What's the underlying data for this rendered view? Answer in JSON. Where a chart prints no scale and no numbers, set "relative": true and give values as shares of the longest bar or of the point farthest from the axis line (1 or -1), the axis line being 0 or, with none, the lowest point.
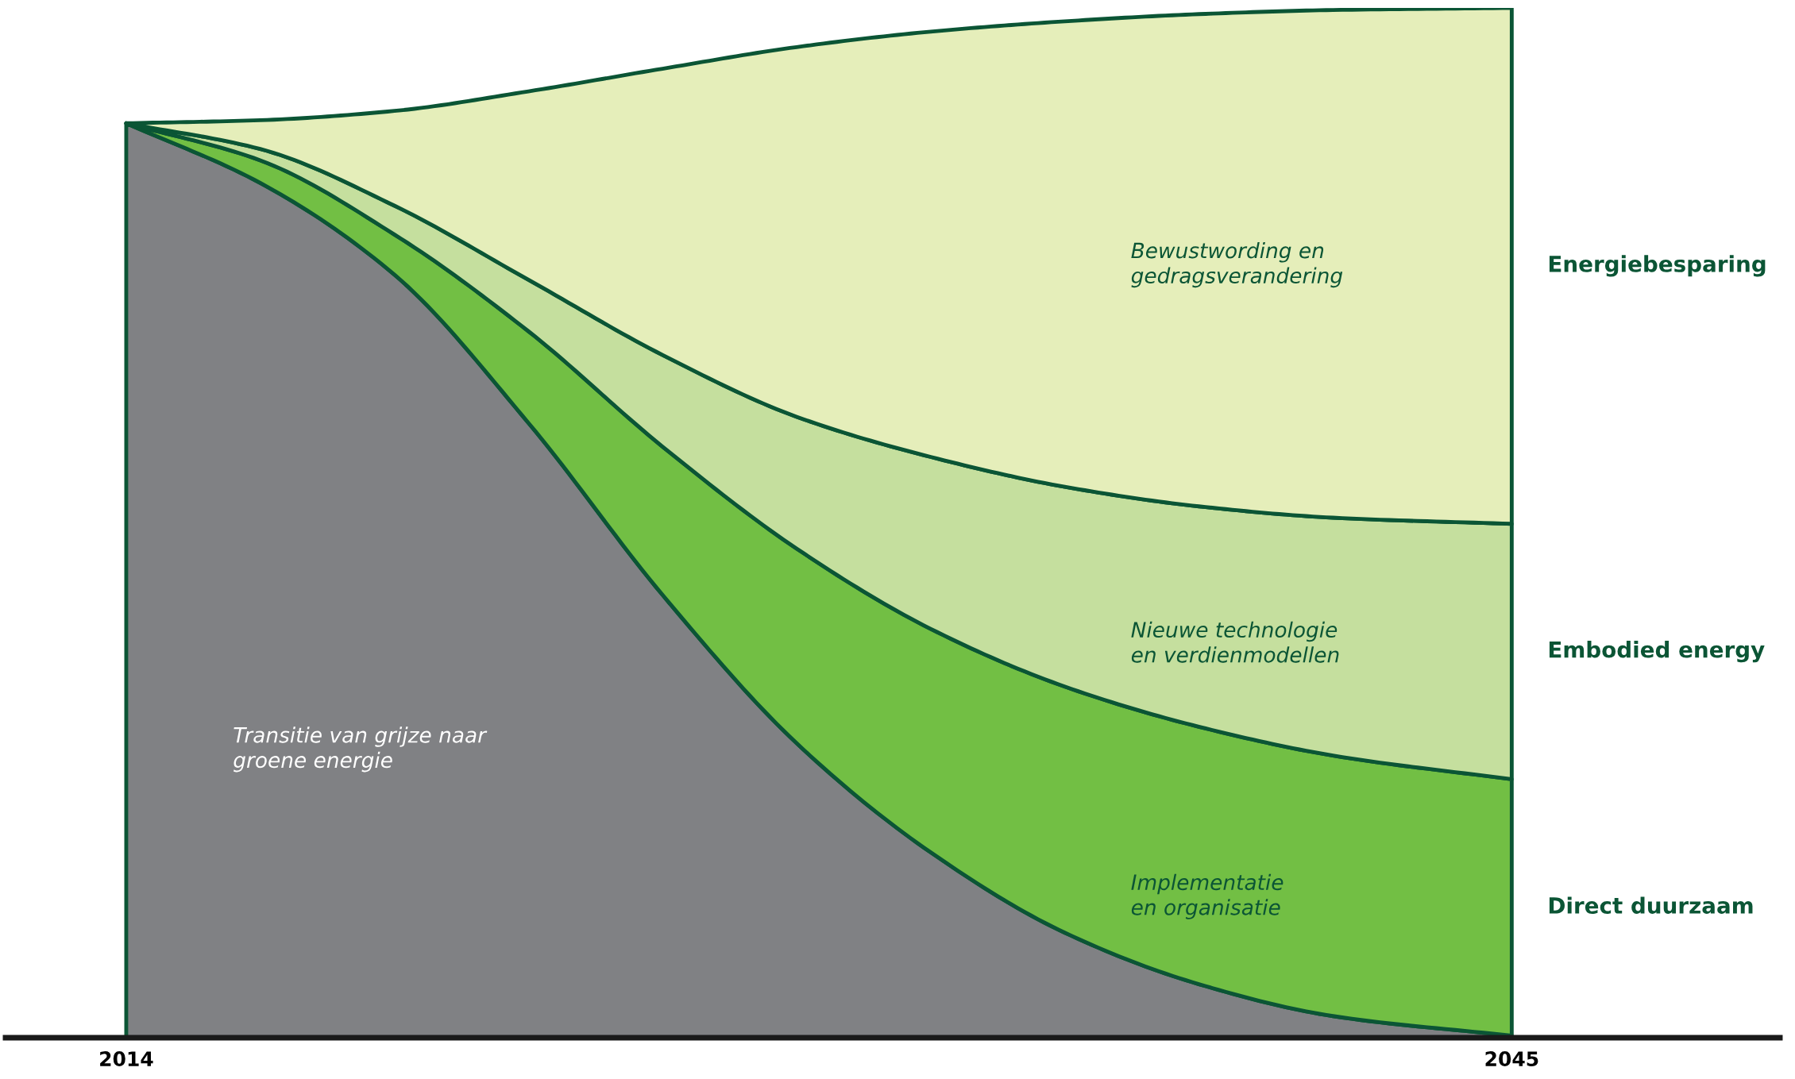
{
  "chart_data": {
    "type": "area",
    "stacked": true,
    "relative": true,
    "x": [
      2014,
      2017,
      2020,
      2023,
      2026,
      2029,
      2032,
      2035,
      2038,
      2041,
      2045
    ],
    "xlim": [
      2011.3,
      2051
    ],
    "xticks": [
      2014,
      2045
    ],
    "tick_labels": "x",
    "legend": false,
    "grid": false,
    "series": [
      {
        "name": "Transitie van grijze naar\ngroene energie",
        "color": "#808184",
        "values": [
          0.888,
          0.83,
          0.741,
          0.597,
          0.43,
          0.286,
          0.18,
          0.102,
          0.052,
          0.021,
          0.002
        ]
      },
      {
        "name": "Implementatie\nen organisatie",
        "color": "#72bf44",
        "values": [
          0,
          0.022,
          0.039,
          0.089,
          0.144,
          0.189,
          0.217,
          0.239,
          0.25,
          0.253,
          0.249
        ]
      },
      {
        "name": "Nieuwe technologie\nen verdienmodellen",
        "color": "#c5df9e",
        "values": [
          0,
          0.011,
          0.028,
          0.05,
          0.089,
          0.128,
          0.167,
          0.194,
          0.214,
          0.231,
          0.248
        ]
      },
      {
        "name": "Bewustwording en\ngedragsverandering",
        "color": "#e5eeba",
        "values": [
          0,
          0.028,
          0.092,
          0.183,
          0.278,
          0.359,
          0.413,
          0.452,
          0.478,
          0.493,
          0.501
        ]
      }
    ],
    "annotations": [
      "Direct duurzaam",
      "Embodied energy",
      "Energiebesparing"
    ]
  }
}
